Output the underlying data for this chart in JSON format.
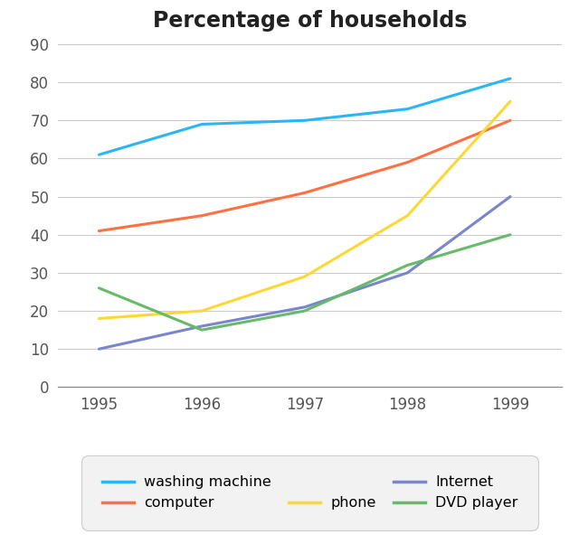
{
  "title": "Percentage of households",
  "years": [
    1995,
    1996,
    1997,
    1998,
    1999
  ],
  "series": {
    "washing machine": {
      "values": [
        61,
        69,
        70,
        73,
        81
      ],
      "color": "#29b6f6"
    },
    "computer": {
      "values": [
        41,
        45,
        51,
        59,
        70
      ],
      "color": "#ff7043"
    },
    "phone": {
      "values": [
        18,
        20,
        29,
        45,
        75
      ],
      "color": "#fdd835"
    },
    "Internet": {
      "values": [
        10,
        16,
        21,
        30,
        50
      ],
      "color": "#7986cb"
    },
    "DVD player": {
      "values": [
        26,
        15,
        20,
        32,
        40
      ],
      "color": "#66bb6a"
    }
  },
  "ylim": [
    0,
    90
  ],
  "yticks": [
    0,
    10,
    20,
    30,
    40,
    50,
    60,
    70,
    80,
    90
  ],
  "xlim": [
    1994.6,
    1999.5
  ],
  "xticks": [
    1995,
    1996,
    1997,
    1998,
    1999
  ],
  "legend_row1": [
    "washing machine",
    "computer"
  ],
  "legend_row2": [
    "phone",
    "Internet",
    "DVD player"
  ],
  "background_color": "#ffffff",
  "legend_bg": "#f2f2f2",
  "line_width": 2.2,
  "title_fontsize": 17,
  "tick_fontsize": 12
}
